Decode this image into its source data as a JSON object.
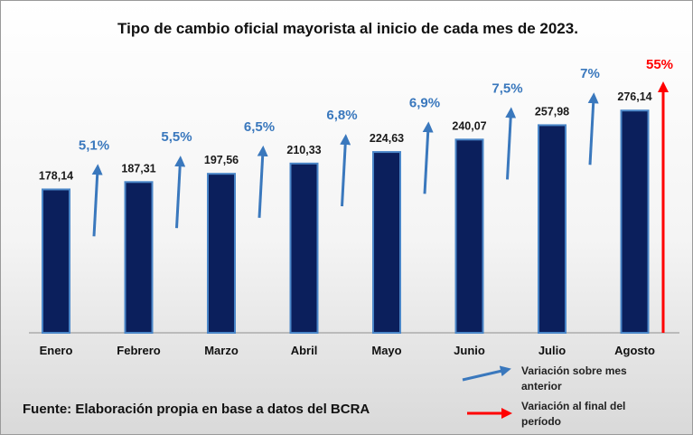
{
  "chart_data": {
    "type": "bar",
    "title": "Tipo de cambio oficial mayorista al inicio de cada mes de 2023.",
    "categories": [
      "Enero",
      "Febrero",
      "Marzo",
      "Abril",
      "Mayo",
      "Junio",
      "Julio",
      "Agosto"
    ],
    "values": [
      178.14,
      187.31,
      197.56,
      210.33,
      224.63,
      240.07,
      257.98,
      276.14
    ],
    "value_labels": [
      "178,14",
      "187,31",
      "197,56",
      "210,33",
      "224,63",
      "240,07",
      "257,98",
      "276,14"
    ],
    "monthly_variation": [
      "5,1%",
      "5,5%",
      "6,5%",
      "6,8%",
      "6,9%",
      "7,5%",
      "7%"
    ],
    "period_variation": "55%",
    "ylim": [
      0,
      300
    ],
    "xlabel": "",
    "ylabel": "",
    "grid": false
  },
  "legend": {
    "monthly": "Variación sobre mes anterior",
    "period": "Variación al final del período"
  },
  "source": "Fuente: Elaboración propia en base a datos del BCRA",
  "colors": {
    "bar": "#0b1f5c",
    "bar_outline": "#4a86c8",
    "arrow_monthly": "#3a78bd",
    "arrow_period": "#ff0000",
    "text": "#111111"
  }
}
